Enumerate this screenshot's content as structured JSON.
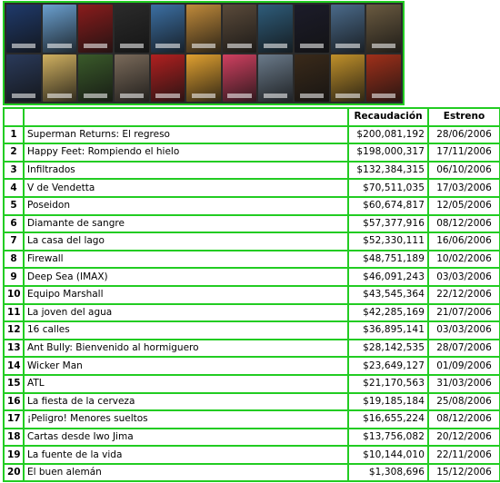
{
  "posters": [
    {
      "color": "#1f3a6b"
    },
    {
      "color": "#6aa0d0"
    },
    {
      "color": "#8a1c1c"
    },
    {
      "color": "#2b2b2b"
    },
    {
      "color": "#3b6fa3"
    },
    {
      "color": "#c08a3a"
    },
    {
      "color": "#5a4a3a"
    },
    {
      "color": "#2e5c7a"
    },
    {
      "color": "#1c1c2a"
    },
    {
      "color": "#4a6a8a"
    },
    {
      "color": "#6a5a40"
    },
    {
      "color": "#2a3a5a"
    },
    {
      "color": "#d0b060"
    },
    {
      "color": "#3a5a2a"
    },
    {
      "color": "#7a6a5a"
    },
    {
      "color": "#b02020"
    },
    {
      "color": "#e0a030"
    },
    {
      "color": "#d04060"
    },
    {
      "color": "#6a7a8a"
    },
    {
      "color": "#3a2a1a"
    },
    {
      "color": "#c0902a"
    },
    {
      "color": "#a0301a"
    }
  ],
  "table": {
    "headers": {
      "rank": "",
      "title": "",
      "gross": "Recaudación",
      "date": "Estreno"
    },
    "rows": [
      {
        "rank": "1",
        "title": "Superman Returns: El regreso",
        "gross": "$200,081,192",
        "date": "28/06/2006"
      },
      {
        "rank": "2",
        "title": "Happy Feet: Rompiendo el hielo",
        "gross": "$198,000,317",
        "date": "17/11/2006"
      },
      {
        "rank": "3",
        "title": "Infiltrados",
        "gross": "$132,384,315",
        "date": "06/10/2006"
      },
      {
        "rank": "4",
        "title": "V de Vendetta",
        "gross": "$70,511,035",
        "date": "17/03/2006"
      },
      {
        "rank": "5",
        "title": "Poseidon",
        "gross": "$60,674,817",
        "date": "12/05/2006"
      },
      {
        "rank": "6",
        "title": "Diamante de sangre",
        "gross": "$57,377,916",
        "date": "08/12/2006"
      },
      {
        "rank": "7",
        "title": "La casa del lago",
        "gross": "$52,330,111",
        "date": "16/06/2006"
      },
      {
        "rank": "8",
        "title": "Firewall",
        "gross": "$48,751,189",
        "date": "10/02/2006"
      },
      {
        "rank": "9",
        "title": "Deep Sea (IMAX)",
        "gross": "$46,091,243",
        "date": "03/03/2006"
      },
      {
        "rank": "10",
        "title": "Equipo Marshall",
        "gross": "$43,545,364",
        "date": "22/12/2006"
      },
      {
        "rank": "11",
        "title": "La joven del agua",
        "gross": "$42,285,169",
        "date": "21/07/2006"
      },
      {
        "rank": "12",
        "title": "16 calles",
        "gross": "$36,895,141",
        "date": "03/03/2006"
      },
      {
        "rank": "13",
        "title": "Ant Bully: Bienvenido al hormiguero",
        "gross": "$28,142,535",
        "date": "28/07/2006"
      },
      {
        "rank": "14",
        "title": "Wicker Man",
        "gross": "$23,649,127",
        "date": "01/09/2006"
      },
      {
        "rank": "15",
        "title": "ATL",
        "gross": "$21,170,563",
        "date": "31/03/2006"
      },
      {
        "rank": "16",
        "title": "La fiesta de la cerveza",
        "gross": "$19,185,184",
        "date": "25/08/2006"
      },
      {
        "rank": "17",
        "title": "¡Peligro! Menores sueltos",
        "gross": "$16,655,224",
        "date": "08/12/2006"
      },
      {
        "rank": "18",
        "title": "Cartas desde Iwo Jima",
        "gross": "$13,756,082",
        "date": "20/12/2006"
      },
      {
        "rank": "19",
        "title": "La fuente de la vida",
        "gross": "$10,144,010",
        "date": "22/11/2006"
      },
      {
        "rank": "20",
        "title": "El buen alemán",
        "gross": "$1,308,696",
        "date": "15/12/2006"
      }
    ]
  }
}
